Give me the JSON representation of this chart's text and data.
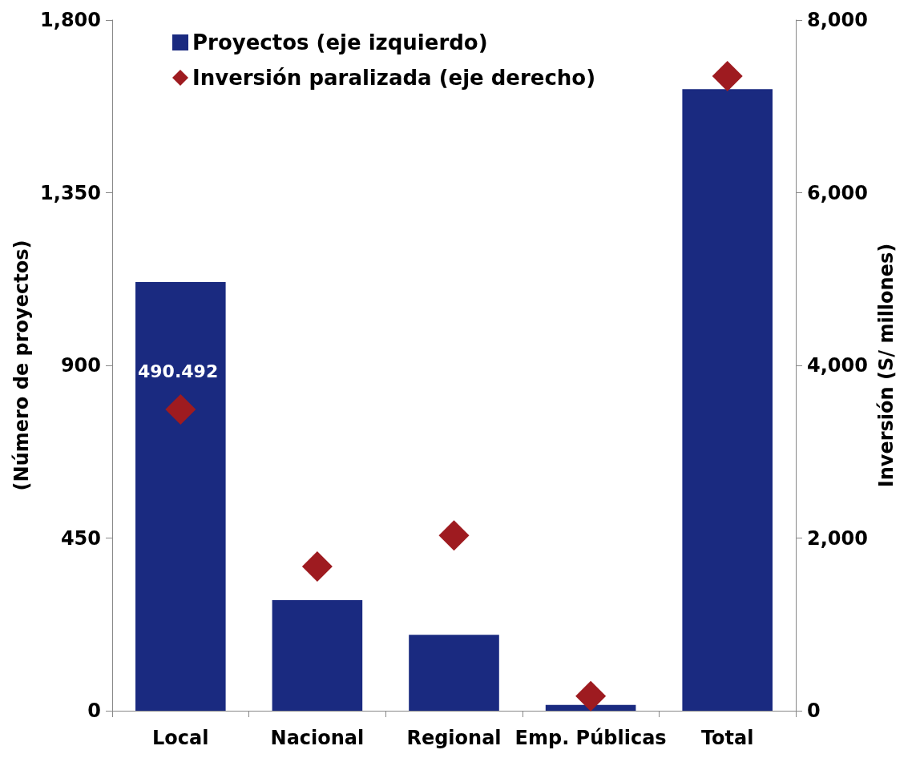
{
  "chart_data": {
    "type": "bar",
    "categories": [
      "Local",
      "Nacional",
      "Regional",
      "Emp. Públicas",
      "Total"
    ],
    "series": [
      {
        "name": "Proyectos (eje izquierdo)",
        "color": "#1a2a80",
        "values": [
          1117,
          288,
          198,
          15,
          1620
        ]
      },
      {
        "name": "Inversión paralizada (eje derecho)",
        "type": "scatter",
        "axis": "y2",
        "marker": "diamond",
        "color": "#9e1b20",
        "values": [
          3490,
          1670,
          2030,
          170,
          7350
        ]
      }
    ],
    "ylabel": "(Número de proyectos)",
    "y2label": "Inversión (S/ millones)",
    "ylim": [
      0,
      1800
    ],
    "yticks": [
      0,
      450,
      900,
      {
        "value": 1350,
        "label": "1,350"
      },
      {
        "value": 1800,
        "label": "1,800"
      }
    ],
    "y2lim": [
      0,
      8000
    ],
    "y2ticks": [
      0,
      {
        "value": 2000,
        "label": "2,000"
      },
      {
        "value": 4000,
        "label": "4,000"
      },
      {
        "value": 6000,
        "label": "6,000"
      },
      {
        "value": 8000,
        "label": "8,000"
      }
    ],
    "annotations": [
      "490.492"
    ],
    "legend": "top left",
    "grid": false
  }
}
